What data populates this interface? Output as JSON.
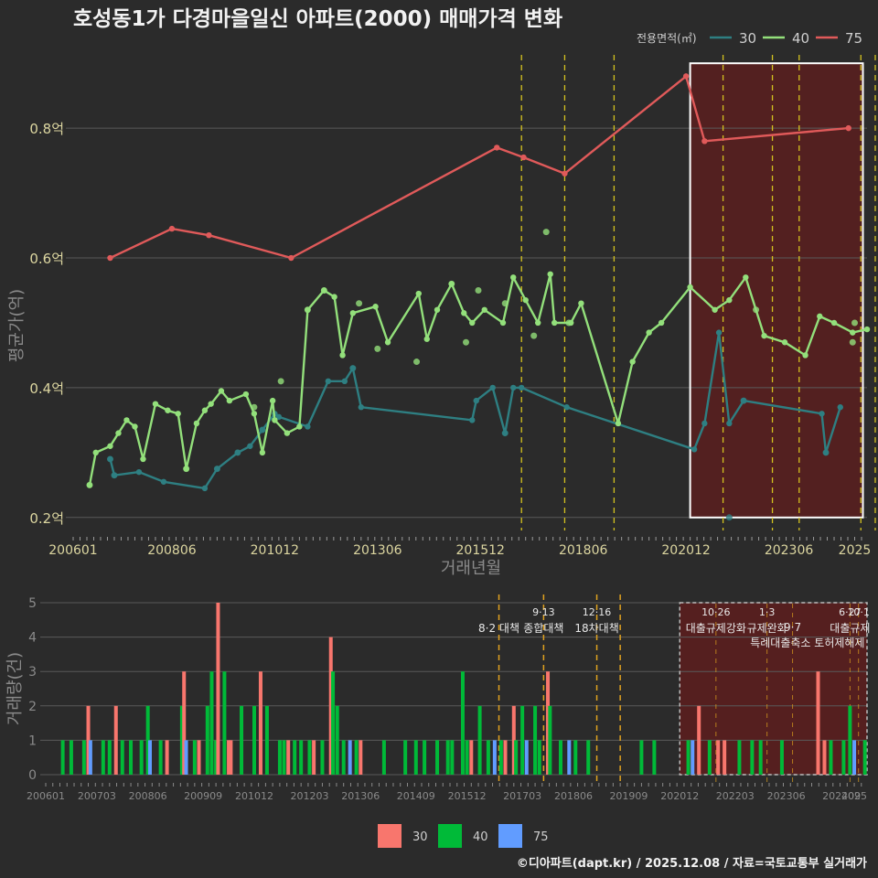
{
  "title": "호성동1가 다경마을일신 아파트(2000) 매매가격 변화",
  "footer": "©디아파트(dapt.kr) / 2025.12.08 / 자료=국토교통부 실거래가",
  "colors": {
    "background": "#2b2b2b",
    "grid": "#5a5a5a",
    "s30": "#2e7f82",
    "s40": "#93e07b",
    "s75": "#e05a5a",
    "vline": "#d4c21f",
    "vline_bottom": "#e0a21f",
    "region": "#5a1e1e",
    "bar30": "#f8766d",
    "bar40": "#00ba38",
    "bar75": "#619cff",
    "text": "#e8e8e8",
    "tick": "#dcd6a0",
    "muted": "#8a8a8a"
  },
  "chart_data": [
    {
      "type": "line",
      "title": "호성동1가 다경마을일신 아파트(2000) 매매가격 변화",
      "xlabel": "거래년월",
      "ylabel": "평균가(억)",
      "ylim": [
        0.18,
        0.92
      ],
      "xlim": [
        2006.0,
        2025.3
      ],
      "yticks": [
        0.2,
        0.4,
        0.6,
        0.8
      ],
      "ytick_labels": [
        "0.2억",
        "0.4억",
        "0.6억",
        "0.8억"
      ],
      "xticks": [
        2006.0,
        2008.4,
        2010.9,
        2013.4,
        2015.9,
        2018.4,
        2020.9,
        2023.4,
        2025.0
      ],
      "xtick_labels": [
        "200601",
        "200806",
        "201012",
        "201306",
        "201512",
        "201806",
        "202012",
        "202306",
        "2025"
      ],
      "legend_title": "전용면적(㎡)",
      "legend_position": "top-right",
      "highlight_range": [
        2021.0,
        2025.2
      ],
      "policy_lines": [
        2016.9,
        2017.95,
        2019.15,
        2021.8,
        2023.0,
        2023.65,
        2025.15,
        2025.5,
        2025.8
      ],
      "series": [
        {
          "name": "30",
          "color_key": "s30",
          "x": [
            2006.9,
            2007.0,
            2007.6,
            2008.2,
            2009.2,
            2009.5,
            2010.0,
            2010.3,
            2010.6,
            2010.9,
            2011.0,
            2011.7,
            2012.2,
            2012.6,
            2012.8,
            2013.0,
            2015.7,
            2015.8,
            2016.2,
            2016.5,
            2016.7,
            2016.9,
            2018.0,
            2021.1,
            2021.35,
            2021.7,
            2021.95,
            2022.3,
            2024.2,
            2024.3,
            2024.65
          ],
          "y": [
            0.29,
            0.265,
            0.27,
            0.255,
            0.245,
            0.275,
            0.3,
            0.31,
            0.335,
            0.36,
            0.355,
            0.34,
            0.41,
            0.41,
            0.43,
            0.37,
            0.35,
            0.38,
            0.4,
            0.33,
            0.4,
            0.4,
            0.37,
            0.305,
            0.345,
            0.485,
            0.345,
            0.38,
            0.36,
            0.3,
            0.37
          ]
        },
        {
          "name": "40",
          "color_key": "s40",
          "x": [
            2006.4,
            2006.55,
            2006.9,
            2007.1,
            2007.3,
            2007.5,
            2007.7,
            2008.0,
            2008.3,
            2008.55,
            2008.75,
            2009.0,
            2009.2,
            2009.35,
            2009.6,
            2009.8,
            2010.2,
            2010.4,
            2010.6,
            2010.85,
            2010.9,
            2011.2,
            2011.5,
            2011.7,
            2012.1,
            2012.35,
            2012.55,
            2012.8,
            2013.35,
            2013.65,
            2014.4,
            2014.6,
            2014.85,
            2015.2,
            2015.5,
            2015.7,
            2016.0,
            2016.45,
            2016.7,
            2017.0,
            2017.3,
            2017.6,
            2017.7,
            2018.1,
            2018.35,
            2019.25,
            2019.6,
            2020.0,
            2020.3,
            2021.0,
            2021.6,
            2021.95,
            2022.35,
            2022.8,
            2023.3,
            2023.8,
            2024.15,
            2024.5,
            2024.95,
            2025.3
          ],
          "y": [
            0.25,
            0.3,
            0.31,
            0.33,
            0.35,
            0.34,
            0.29,
            0.375,
            0.365,
            0.36,
            0.275,
            0.345,
            0.365,
            0.375,
            0.395,
            0.38,
            0.39,
            0.36,
            0.3,
            0.38,
            0.35,
            0.33,
            0.34,
            0.52,
            0.55,
            0.54,
            0.45,
            0.515,
            0.525,
            0.47,
            0.545,
            0.475,
            0.52,
            0.56,
            0.515,
            0.5,
            0.52,
            0.5,
            0.57,
            0.535,
            0.5,
            0.575,
            0.5,
            0.5,
            0.53,
            0.345,
            0.44,
            0.485,
            0.5,
            0.555,
            0.52,
            0.535,
            0.57,
            0.48,
            0.47,
            0.45,
            0.51,
            0.5,
            0.485,
            0.49
          ]
        },
        {
          "name": "75",
          "color_key": "s75",
          "x": [
            2006.9,
            2008.4,
            2009.3,
            2011.3,
            2016.3,
            2016.95,
            2017.95,
            2020.9,
            2021.35,
            2024.85
          ],
          "y": [
            0.6,
            0.645,
            0.635,
            0.6,
            0.77,
            0.755,
            0.73,
            0.88,
            0.78,
            0.8
          ]
        }
      ],
      "scatter_points": {
        "s30": {
          "x": [
            2006.9,
            2007.0,
            2009.5,
            2010.0,
            2010.6,
            2012.8,
            2016.5,
            2021.95,
            2022.3,
            2024.3
          ],
          "y": [
            0.29,
            0.265,
            0.275,
            0.3,
            0.335,
            0.43,
            0.33,
            0.2,
            0.38,
            0.3
          ]
        },
        "s40": {
          "x": [
            2006.4,
            2008.75,
            2010.4,
            2011.05,
            2011.7,
            2012.1,
            2012.95,
            2013.4,
            2014.35,
            2015.2,
            2015.55,
            2015.85,
            2016.5,
            2017.2,
            2017.5,
            2018.05,
            2022.6,
            2024.95,
            2025.0
          ],
          "y": [
            0.25,
            0.275,
            0.37,
            0.41,
            0.52,
            0.55,
            0.53,
            0.46,
            0.44,
            0.56,
            0.47,
            0.55,
            0.53,
            0.48,
            0.64,
            0.5,
            0.52,
            0.47,
            0.5
          ]
        }
      }
    },
    {
      "type": "bar",
      "ylabel": "거래량(건)",
      "ylim": [
        0,
        5
      ],
      "yticks": [
        0,
        1,
        2,
        3,
        4,
        5
      ],
      "xlim": [
        2006.0,
        2025.3
      ],
      "xticks": [
        2006.0,
        2007.2,
        2008.4,
        2009.7,
        2010.9,
        2012.2,
        2013.4,
        2014.7,
        2015.9,
        2017.2,
        2018.4,
        2019.7,
        2020.9,
        2022.2,
        2023.4,
        2024.7,
        2025.0
      ],
      "xtick_labels": [
        "200601",
        "200703",
        "200806",
        "200909",
        "201012",
        "201203",
        "201306",
        "201409",
        "201512",
        "201703",
        "201806",
        "201909",
        "202012",
        "202203",
        "202306",
        "202409",
        "2025"
      ],
      "legend": [
        "30",
        "40",
        "75"
      ],
      "legend_position": "bottom",
      "highlight_range": [
        2020.9,
        2025.3
      ],
      "policy_lines": [
        2016.65,
        2017.7,
        2018.95,
        2019.5
      ],
      "policy_lines_faint": [
        2021.75,
        2022.95,
        2023.55,
        2024.9,
        2025.1
      ],
      "policy_labels": [
        {
          "x": 2016.65,
          "line1": "",
          "line2": "8·2 대책"
        },
        {
          "x": 2017.7,
          "line1": "9·13",
          "line2": "종합대책"
        },
        {
          "x": 2018.95,
          "line1": "12·16",
          "line2": "18차대책"
        },
        {
          "x": 2021.75,
          "line1": "10·26",
          "line2": "대출규제강화"
        },
        {
          "x": 2022.95,
          "line1": "1·3",
          "line2": "규제완화"
        },
        {
          "x": 2023.55,
          "line1": "",
          "line2": "9·7"
        },
        {
          "x": 2023.9,
          "line1": "",
          "line2": "특례대출축소 토허제해제"
        },
        {
          "x": 2024.9,
          "line1": "6·27",
          "line2": "대출규제"
        },
        {
          "x": 2025.1,
          "line1": "10·1",
          "line2": ""
        }
      ],
      "bars": [
        {
          "x": 2006.4,
          "s": "40",
          "v": 1
        },
        {
          "x": 2006.6,
          "s": "40",
          "v": 1
        },
        {
          "x": 2006.9,
          "s": "40",
          "v": 1
        },
        {
          "x": 2007.0,
          "s": "30",
          "v": 2
        },
        {
          "x": 2007.05,
          "s": "75",
          "v": 1
        },
        {
          "x": 2007.35,
          "s": "40",
          "v": 1
        },
        {
          "x": 2007.5,
          "s": "40",
          "v": 1
        },
        {
          "x": 2007.65,
          "s": "30",
          "v": 2
        },
        {
          "x": 2007.8,
          "s": "40",
          "v": 1
        },
        {
          "x": 2008.0,
          "s": "40",
          "v": 1
        },
        {
          "x": 2008.25,
          "s": "40",
          "v": 1
        },
        {
          "x": 2008.4,
          "s": "40",
          "v": 2
        },
        {
          "x": 2008.45,
          "s": "75",
          "v": 1
        },
        {
          "x": 2008.7,
          "s": "40",
          "v": 1
        },
        {
          "x": 2008.85,
          "s": "30",
          "v": 1
        },
        {
          "x": 2009.2,
          "s": "40",
          "v": 2
        },
        {
          "x": 2009.25,
          "s": "30",
          "v": 3
        },
        {
          "x": 2009.3,
          "s": "75",
          "v": 1
        },
        {
          "x": 2009.5,
          "s": "40",
          "v": 1
        },
        {
          "x": 2009.6,
          "s": "30",
          "v": 1
        },
        {
          "x": 2009.8,
          "s": "40",
          "v": 2
        },
        {
          "x": 2009.9,
          "s": "40",
          "v": 3
        },
        {
          "x": 2010.0,
          "s": "40",
          "v": 1
        },
        {
          "x": 2010.05,
          "s": "30",
          "v": 5
        },
        {
          "x": 2010.2,
          "s": "40",
          "v": 3
        },
        {
          "x": 2010.3,
          "s": "30",
          "v": 1
        },
        {
          "x": 2010.35,
          "s": "30",
          "v": 1
        },
        {
          "x": 2010.6,
          "s": "40",
          "v": 2
        },
        {
          "x": 2010.9,
          "s": "40",
          "v": 2
        },
        {
          "x": 2011.05,
          "s": "30",
          "v": 3
        },
        {
          "x": 2011.2,
          "s": "40",
          "v": 2
        },
        {
          "x": 2011.5,
          "s": "40",
          "v": 1
        },
        {
          "x": 2011.6,
          "s": "40",
          "v": 1
        },
        {
          "x": 2011.7,
          "s": "30",
          "v": 1
        },
        {
          "x": 2011.85,
          "s": "40",
          "v": 1
        },
        {
          "x": 2012.0,
          "s": "40",
          "v": 1
        },
        {
          "x": 2012.2,
          "s": "40",
          "v": 1
        },
        {
          "x": 2012.3,
          "s": "30",
          "v": 1
        },
        {
          "x": 2012.5,
          "s": "40",
          "v": 1
        },
        {
          "x": 2012.7,
          "s": "30",
          "v": 4
        },
        {
          "x": 2012.75,
          "s": "40",
          "v": 3
        },
        {
          "x": 2012.85,
          "s": "40",
          "v": 2
        },
        {
          "x": 2013.0,
          "s": "40",
          "v": 1
        },
        {
          "x": 2013.15,
          "s": "75",
          "v": 1
        },
        {
          "x": 2013.3,
          "s": "40",
          "v": 1
        },
        {
          "x": 2013.4,
          "s": "30",
          "v": 1
        },
        {
          "x": 2013.95,
          "s": "40",
          "v": 1
        },
        {
          "x": 2014.45,
          "s": "40",
          "v": 1
        },
        {
          "x": 2014.7,
          "s": "40",
          "v": 1
        },
        {
          "x": 2014.9,
          "s": "40",
          "v": 1
        },
        {
          "x": 2015.2,
          "s": "40",
          "v": 1
        },
        {
          "x": 2015.45,
          "s": "40",
          "v": 1
        },
        {
          "x": 2015.55,
          "s": "40",
          "v": 1
        },
        {
          "x": 2015.8,
          "s": "40",
          "v": 3
        },
        {
          "x": 2015.9,
          "s": "40",
          "v": 1
        },
        {
          "x": 2016.0,
          "s": "30",
          "v": 1
        },
        {
          "x": 2016.2,
          "s": "40",
          "v": 2
        },
        {
          "x": 2016.4,
          "s": "40",
          "v": 1
        },
        {
          "x": 2016.55,
          "s": "75",
          "v": 1
        },
        {
          "x": 2016.7,
          "s": "40",
          "v": 1
        },
        {
          "x": 2016.8,
          "s": "30",
          "v": 1
        },
        {
          "x": 2017.0,
          "s": "30",
          "v": 2
        },
        {
          "x": 2017.05,
          "s": "40",
          "v": 1
        },
        {
          "x": 2017.2,
          "s": "40",
          "v": 2
        },
        {
          "x": 2017.3,
          "s": "75",
          "v": 1
        },
        {
          "x": 2017.5,
          "s": "40",
          "v": 2
        },
        {
          "x": 2017.6,
          "s": "40",
          "v": 1
        },
        {
          "x": 2017.8,
          "s": "30",
          "v": 3
        },
        {
          "x": 2017.85,
          "s": "40",
          "v": 2
        },
        {
          "x": 2018.1,
          "s": "40",
          "v": 1
        },
        {
          "x": 2018.3,
          "s": "75",
          "v": 1
        },
        {
          "x": 2018.45,
          "s": "40",
          "v": 1
        },
        {
          "x": 2018.75,
          "s": "40",
          "v": 1
        },
        {
          "x": 2020.0,
          "s": "40",
          "v": 1
        },
        {
          "x": 2020.3,
          "s": "40",
          "v": 1
        },
        {
          "x": 2021.1,
          "s": "40",
          "v": 1
        },
        {
          "x": 2021.2,
          "s": "75",
          "v": 1
        },
        {
          "x": 2021.35,
          "s": "30",
          "v": 2
        },
        {
          "x": 2021.6,
          "s": "40",
          "v": 1
        },
        {
          "x": 2021.8,
          "s": "30",
          "v": 1
        },
        {
          "x": 2021.95,
          "s": "30",
          "v": 1
        },
        {
          "x": 2022.3,
          "s": "40",
          "v": 1
        },
        {
          "x": 2022.6,
          "s": "40",
          "v": 1
        },
        {
          "x": 2022.8,
          "s": "40",
          "v": 1
        },
        {
          "x": 2023.3,
          "s": "40",
          "v": 1
        },
        {
          "x": 2024.15,
          "s": "30",
          "v": 3
        },
        {
          "x": 2024.3,
          "s": "30",
          "v": 1
        },
        {
          "x": 2024.45,
          "s": "40",
          "v": 1
        },
        {
          "x": 2024.75,
          "s": "40",
          "v": 1
        },
        {
          "x": 2024.9,
          "s": "40",
          "v": 2
        },
        {
          "x": 2025.0,
          "s": "75",
          "v": 1
        },
        {
          "x": 2025.25,
          "s": "40",
          "v": 1
        }
      ]
    }
  ]
}
